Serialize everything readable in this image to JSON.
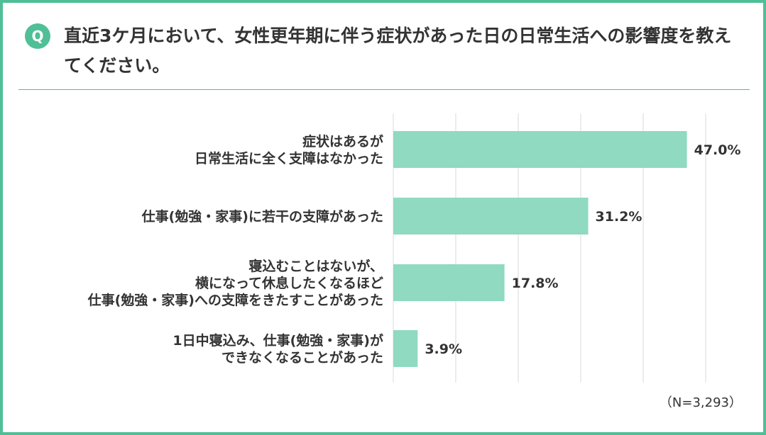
{
  "question": {
    "badge": "Q",
    "text": "直近3ケ月において、女性更年期に伴う症状があった日の日常生活への影響度を教えてください。"
  },
  "colors": {
    "accent": "#4fbf97",
    "bar": "#8fdac0",
    "grid": "#d9d9d9",
    "text": "#333333"
  },
  "chart_data": {
    "type": "bar",
    "orientation": "horizontal",
    "categories": [
      [
        "症状はあるが",
        "日常生活に全く支障はなかった"
      ],
      [
        "仕事(勉強・家事)に若干の支障があった"
      ],
      [
        "寝込むことはないが、",
        "横になって休息したくなるほど",
        "仕事(勉強・家事)への支障をきたすことがあった"
      ],
      [
        "1日中寝込み、仕事(勉強・家事)が",
        "できなくなることがあった"
      ]
    ],
    "values": [
      47.0,
      31.2,
      17.8,
      3.9
    ],
    "value_labels": [
      "47.0%",
      "31.2%",
      "17.8%",
      "3.9%"
    ],
    "xlim": [
      0,
      55
    ],
    "grid": true,
    "gridline_step": 10,
    "sample_note": "（N=3,293）"
  }
}
